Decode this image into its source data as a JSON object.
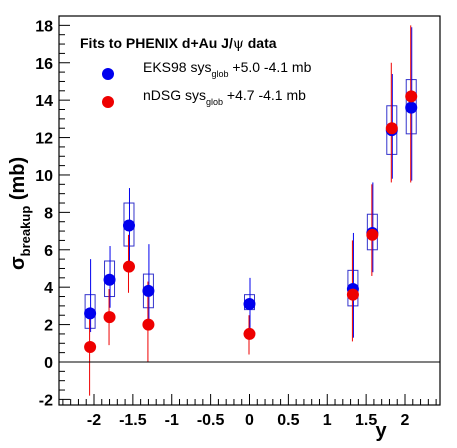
{
  "chart_data": {
    "type": "scatter",
    "legend_title_parts": [
      "Fits to PHENIX d+Au J/",
      "ψ",
      " data"
    ],
    "xlabel": "y",
    "ylabel": {
      "main": "σ",
      "sub": "breakup",
      "unit": " (mb)"
    },
    "xlim": [
      -2.45,
      2.45
    ],
    "ylim": [
      -2.3,
      18.5
    ],
    "x_ticks": [
      -2,
      -1.5,
      -1,
      -0.5,
      0,
      0.5,
      1,
      1.5,
      2
    ],
    "x_tick_labels": [
      "-2",
      "-1.5",
      "-1",
      "-0.5",
      "0",
      "0.5",
      "1",
      "1.5",
      "2"
    ],
    "y_ticks": [
      -2,
      0,
      2,
      4,
      6,
      8,
      10,
      12,
      14,
      16,
      18
    ],
    "y_tick_labels": [
      "-2",
      "0",
      "2",
      "4",
      "6",
      "8",
      "10",
      "12",
      "14",
      "16",
      "18"
    ],
    "legend_position": "top-left",
    "series": [
      {
        "name": "EKS98",
        "legend_parts": [
          "EKS98 sys",
          "glob",
          " +5.0 -4.1 mb"
        ],
        "color": "#0000ee",
        "marker": "circle",
        "box_color": "#3333cc",
        "points": [
          {
            "x": -2.05,
            "y": 2.6,
            "err_lo": 1.6,
            "err_hi": 5.5,
            "sys_lo": 1.8,
            "sys_hi": 3.6
          },
          {
            "x": -1.8,
            "y": 4.4,
            "err_lo": 2.9,
            "err_hi": 6.2,
            "sys_lo": 3.5,
            "sys_hi": 5.4
          },
          {
            "x": -1.55,
            "y": 7.3,
            "err_lo": 5.4,
            "err_hi": 9.3,
            "sys_lo": 6.2,
            "sys_hi": 8.5
          },
          {
            "x": -1.3,
            "y": 3.8,
            "err_lo": 1.7,
            "err_hi": 6.3,
            "sys_lo": 2.9,
            "sys_hi": 4.7
          },
          {
            "x": 0.0,
            "y": 3.1,
            "err_lo": 1.8,
            "err_hi": 4.5,
            "sys_lo": 2.8,
            "sys_hi": 3.6
          },
          {
            "x": 1.33,
            "y": 3.9,
            "err_lo": 1.3,
            "err_hi": 6.9,
            "sys_lo": 3.0,
            "sys_hi": 4.9
          },
          {
            "x": 1.58,
            "y": 6.9,
            "err_lo": 4.8,
            "err_hi": 9.6,
            "sys_lo": 6.0,
            "sys_hi": 7.9
          },
          {
            "x": 1.83,
            "y": 12.4,
            "err_lo": 9.8,
            "err_hi": 15.4,
            "sys_lo": 11.1,
            "sys_hi": 13.7
          },
          {
            "x": 2.08,
            "y": 13.6,
            "err_lo": 9.7,
            "err_hi": 17.9,
            "sys_lo": 12.2,
            "sys_hi": 15.1
          }
        ]
      },
      {
        "name": "nDSG",
        "legend_parts": [
          "nDSG sys",
          "glob",
          " +4.7 -4.1 mb"
        ],
        "color": "#ee0000",
        "marker": "circle",
        "points": [
          {
            "x": -2.05,
            "y": 0.8,
            "err_lo": -1.8,
            "err_hi": 2.9
          },
          {
            "x": -1.8,
            "y": 2.4,
            "err_lo": 0.9,
            "err_hi": 3.9
          },
          {
            "x": -1.55,
            "y": 5.1,
            "err_lo": 3.7,
            "err_hi": 6.8
          },
          {
            "x": -1.3,
            "y": 2.0,
            "err_lo": 0.0,
            "err_hi": 4.3
          },
          {
            "x": 0.0,
            "y": 1.5,
            "err_lo": 0.4,
            "err_hi": 2.5
          },
          {
            "x": 1.33,
            "y": 3.6,
            "err_lo": 1.1,
            "err_hi": 6.5
          },
          {
            "x": 1.58,
            "y": 6.8,
            "err_lo": 4.6,
            "err_hi": 9.5
          },
          {
            "x": 1.83,
            "y": 12.5,
            "err_lo": 9.6,
            "err_hi": 16.0
          },
          {
            "x": 2.08,
            "y": 14.2,
            "err_lo": 9.6,
            "err_hi": 18.0
          }
        ]
      }
    ]
  }
}
